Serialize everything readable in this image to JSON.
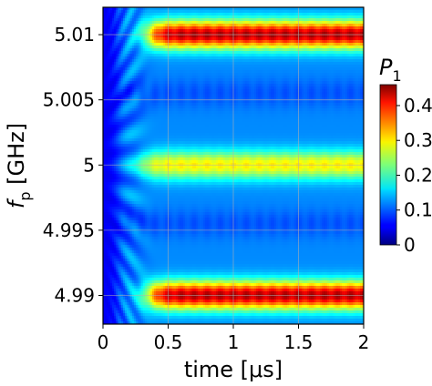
{
  "chart_data": {
    "type": "heatmap",
    "title": "",
    "xlabel": "time [μs]",
    "ylabel_main": "f",
    "ylabel_sub": "p",
    "ylabel_unit": " [GHz]",
    "xlim": [
      0,
      2
    ],
    "ylim": [
      4.9878,
      5.0121
    ],
    "x_ticks": [
      0,
      0.5,
      1,
      1.5,
      2
    ],
    "x_tick_labels": [
      "0",
      "0.5",
      "1",
      "1.5",
      "2"
    ],
    "y_ticks": [
      4.99,
      4.995,
      5.0,
      5.005,
      5.01
    ],
    "y_tick_labels": [
      "4.99",
      "4.995",
      "5",
      "5.005",
      "5.01"
    ],
    "grid": true,
    "colorbar": {
      "label_main": "P",
      "label_sub": "1",
      "range": [
        0,
        0.46
      ],
      "ticks": [
        0,
        0.1,
        0.2,
        0.3,
        0.4
      ],
      "tick_labels": [
        "0",
        "0.1",
        "0.2",
        "0.3",
        "0.4"
      ],
      "colormap": "jet"
    },
    "bands": [
      {
        "center_ghz": 5.01,
        "peak_P": 0.45,
        "onset_us": 0.35
      },
      {
        "center_ghz": 5.0,
        "peak_P": 0.3,
        "onset_us": 0.3
      },
      {
        "center_ghz": 4.99,
        "peak_P": 0.45,
        "onset_us": 0.35
      }
    ],
    "background_P": 0.12,
    "oscillation_period_us": 0.1
  }
}
